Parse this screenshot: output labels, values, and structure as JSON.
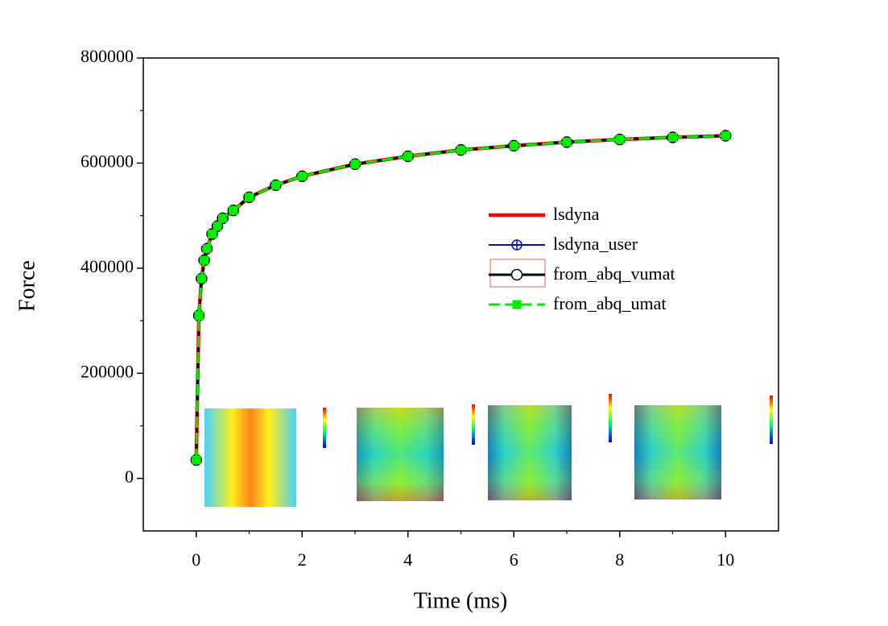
{
  "chart_data": {
    "type": "line",
    "x_label": "Time (ms)",
    "y_label": "Force",
    "x": [
      0,
      0.05,
      0.1,
      0.15,
      0.2,
      0.3,
      0.4,
      0.5,
      0.7,
      1.0,
      1.5,
      2,
      3,
      4,
      5,
      6,
      7,
      8,
      9,
      10
    ],
    "series": [
      {
        "name": "lsdyna",
        "color": "#ff0000",
        "marker": "none",
        "dash": "solid",
        "values": [
          35000,
          310000,
          380000,
          415000,
          437000,
          465000,
          480000,
          495000,
          510000,
          535000,
          558000,
          575000,
          598000,
          613000,
          625000,
          633000,
          640000,
          645000,
          649000,
          652000
        ]
      },
      {
        "name": "lsdyna_user",
        "color": "#0000ff",
        "marker": "circle-plus",
        "dash": "solid",
        "values": [
          35000,
          310000,
          380000,
          415000,
          437000,
          465000,
          480000,
          495000,
          510000,
          535000,
          558000,
          575000,
          598000,
          613000,
          625000,
          633000,
          640000,
          645000,
          649000,
          652000
        ]
      },
      {
        "name": "from_abq_vumat",
        "color": "#000000",
        "marker": "circle",
        "dash": "solid",
        "values": [
          35000,
          310000,
          380000,
          415000,
          437000,
          465000,
          480000,
          495000,
          510000,
          535000,
          558000,
          575000,
          598000,
          613000,
          625000,
          633000,
          640000,
          645000,
          649000,
          652000
        ]
      },
      {
        "name": "from_abq_umat",
        "color": "#00ee00",
        "marker": "square",
        "dash": "dashed",
        "values": [
          35000,
          310000,
          380000,
          415000,
          437000,
          465000,
          480000,
          495000,
          510000,
          535000,
          558000,
          575000,
          598000,
          613000,
          625000,
          633000,
          640000,
          645000,
          649000,
          652000
        ]
      }
    ],
    "xlim": [
      -1,
      11
    ],
    "xticks": [
      0,
      2,
      4,
      6,
      8,
      10
    ],
    "ylim": [
      -100000,
      800000
    ],
    "yticks": [
      0,
      200000,
      400000,
      600000,
      800000
    ],
    "grid": false,
    "legend": "right"
  }
}
